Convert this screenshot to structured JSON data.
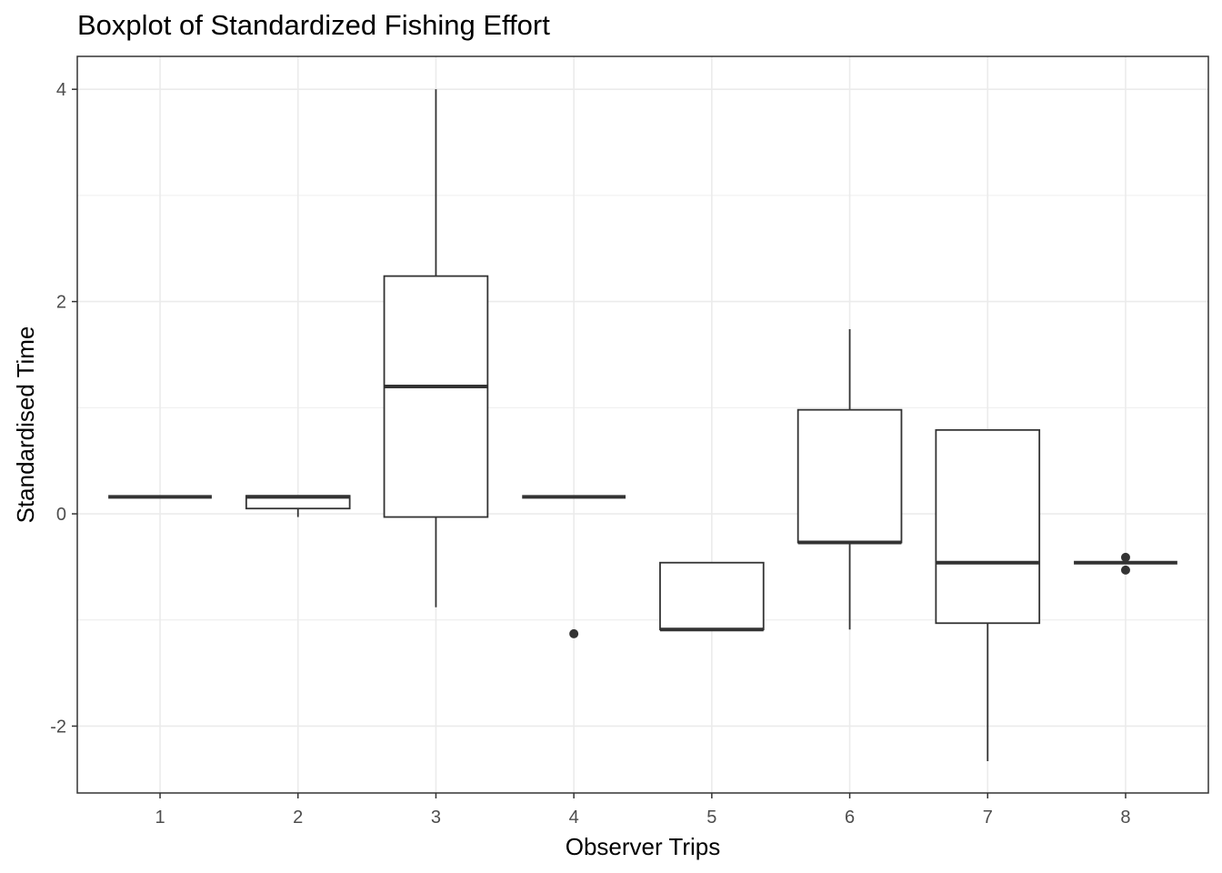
{
  "chart_data": {
    "type": "boxplot",
    "title": "Boxplot of Standardized Fishing Effort",
    "xlabel": "Observer Trips",
    "ylabel": "Standardised Time",
    "categories": [
      "1",
      "2",
      "3",
      "4",
      "5",
      "6",
      "7",
      "8"
    ],
    "ylim": [
      -2.63,
      4.31
    ],
    "yticks": [
      -2,
      0,
      2,
      4
    ],
    "ytick_labels": [
      "-2",
      "0",
      "2",
      "4"
    ],
    "grid": true,
    "boxes": [
      {
        "category": "1",
        "min": 0.16,
        "q1": 0.16,
        "median": 0.16,
        "q3": 0.16,
        "max": 0.16,
        "outliers": []
      },
      {
        "category": "2",
        "min": -0.03,
        "q1": 0.05,
        "median": 0.16,
        "q3": 0.17,
        "max": 0.17,
        "outliers": []
      },
      {
        "category": "3",
        "min": -0.88,
        "q1": -0.03,
        "median": 1.2,
        "q3": 2.24,
        "max": 4.0,
        "outliers": []
      },
      {
        "category": "4",
        "min": 0.16,
        "q1": 0.16,
        "median": 0.16,
        "q3": 0.16,
        "max": 0.16,
        "outliers": [
          -1.13
        ]
      },
      {
        "category": "5",
        "min": -1.09,
        "q1": -1.09,
        "median": -1.09,
        "q3": -0.46,
        "max": -0.46,
        "outliers": []
      },
      {
        "category": "6",
        "min": -1.09,
        "q1": -0.27,
        "median": -0.27,
        "q3": 0.98,
        "max": 1.74,
        "outliers": []
      },
      {
        "category": "7",
        "min": -2.33,
        "q1": -1.03,
        "median": -0.46,
        "q3": 0.79,
        "max": 0.79,
        "outliers": []
      },
      {
        "category": "8",
        "min": -0.46,
        "q1": -0.46,
        "median": -0.46,
        "q3": -0.46,
        "max": -0.46,
        "outliers": [
          -0.41,
          -0.53
        ]
      }
    ],
    "colors": {
      "box_line": "#333333",
      "grid": "#ebebeb",
      "panel_border": "#333333",
      "background": "#ffffff"
    }
  }
}
